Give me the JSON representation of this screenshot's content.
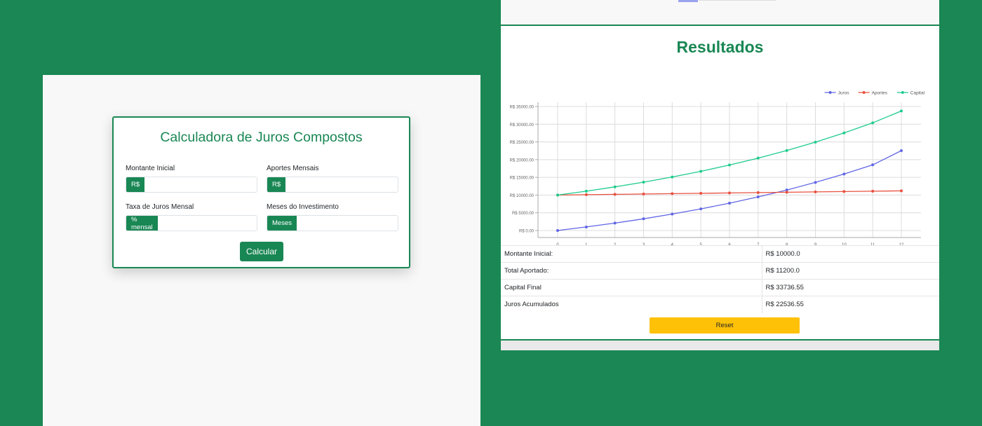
{
  "calculator": {
    "title": "Calculadora de Juros Compostos",
    "fields": [
      {
        "label": "Montante Inicial",
        "prefix": "R$",
        "value": ""
      },
      {
        "label": "Aportes Mensais",
        "prefix": "R$",
        "value": ""
      },
      {
        "label": "Taxa de Juros Mensal",
        "prefix": "% mensal",
        "value": ""
      },
      {
        "label": "Meses do Investimento",
        "prefix": "Meses",
        "value": ""
      }
    ],
    "button_label": "Calcular"
  },
  "results": {
    "title": "Resultados",
    "rows": [
      {
        "label": "Montante Inicial:",
        "value": "R$ 10000.0"
      },
      {
        "label": "Total Aportado:",
        "value": "R$ 11200.0"
      },
      {
        "label": "Capital Final",
        "value": "R$ 33736.55"
      },
      {
        "label": "Juros Acumulados",
        "value": "R$ 22536.55"
      }
    ],
    "reset_label": "Reset"
  },
  "colors": {
    "primary": "#198754",
    "juros": "#6166e4",
    "aportes": "#e9503f",
    "capital": "#1fcc8d",
    "reset": "#ffc107"
  },
  "chart_data": {
    "type": "line",
    "x": [
      0,
      1,
      2,
      3,
      4,
      5,
      6,
      7,
      8,
      9,
      10,
      11,
      12
    ],
    "series": [
      {
        "name": "Juros",
        "values": [
          0,
          1000,
          2100,
          3310,
          4641,
          6105,
          7716,
          9487,
          11436,
          13579,
          15937,
          18531,
          22537
        ]
      },
      {
        "name": "Aportes",
        "values": [
          10000,
          10100,
          10200,
          10300,
          10400,
          10500,
          10600,
          10700,
          10800,
          10900,
          11000,
          11100,
          11200
        ]
      },
      {
        "name": "Capital",
        "values": [
          10000,
          11100,
          12310,
          13641,
          15105,
          16716,
          18487,
          20436,
          22579,
          24937,
          27531,
          30384,
          33737
        ]
      }
    ],
    "y_ticks": [
      "R$ 0.00",
      "R$ 5000.00",
      "R$ 10000.00",
      "R$ 15000.00",
      "R$ 20000.00",
      "R$ 25000.00",
      "R$ 30000.00",
      "R$ 35000.00"
    ],
    "ylim": [
      0,
      35000
    ],
    "legend_position": "top-right",
    "grid": true
  }
}
